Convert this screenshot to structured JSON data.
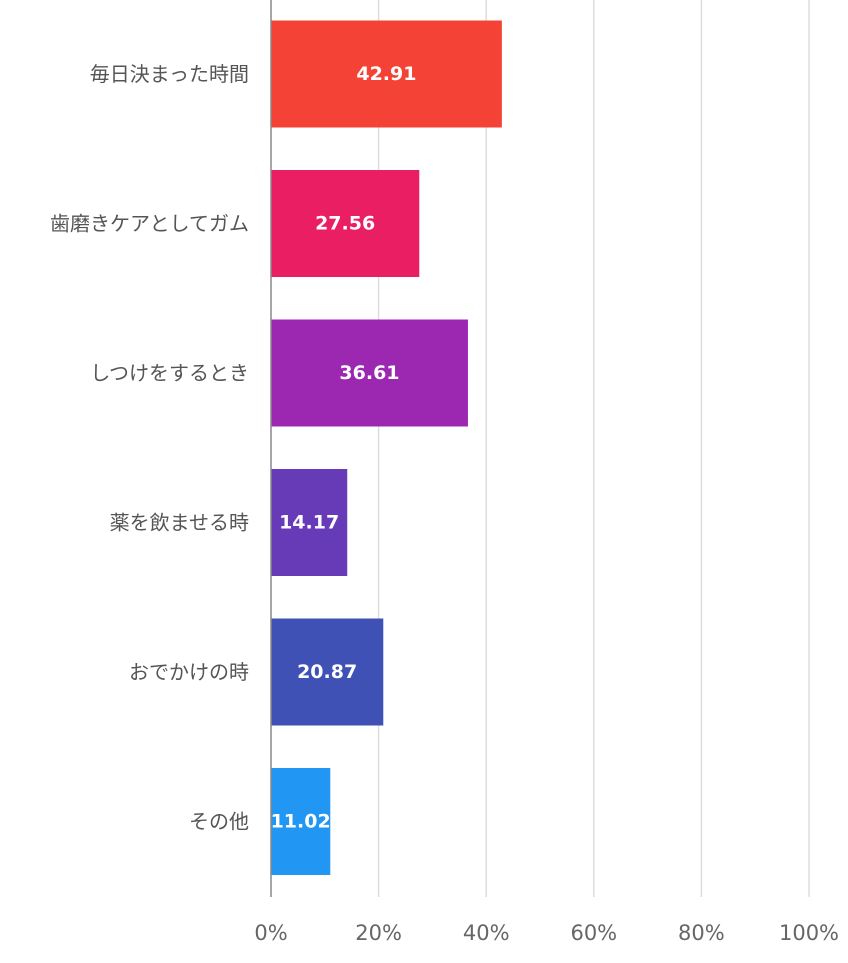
{
  "chart_data": {
    "type": "bar",
    "orientation": "horizontal",
    "title": "",
    "xlabel": "",
    "ylabel": "",
    "categories": [
      "毎日決まった時間",
      "歯磨きケアとしてガム",
      "しつけをするとき",
      "薬を飲ませる時",
      "おでかけの時",
      "その他"
    ],
    "values": [
      42.91,
      27.56,
      36.61,
      14.17,
      20.87,
      11.02
    ],
    "data_labels": [
      "42.91",
      "27.56",
      "36.61",
      "14.17",
      "20.87",
      "11.02"
    ],
    "colors": [
      "#f44336",
      "#e91e63",
      "#9c27b0",
      "#673ab7",
      "#3f51b5",
      "#2196f3"
    ],
    "xlim": [
      0,
      100
    ],
    "x_ticks": [
      0,
      20,
      40,
      60,
      80,
      100
    ],
    "x_tick_labels": [
      "0%",
      "20%",
      "40%",
      "60%",
      "80%",
      "100%"
    ],
    "grid": true,
    "legend": "none"
  }
}
